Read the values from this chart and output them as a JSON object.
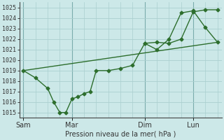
{
  "background_color": "#cce8e8",
  "grid_color": "#aacfcf",
  "line_color": "#2d6e2d",
  "marker_color": "#2d6e2d",
  "xlabel": "Pression niveau de la mer( hPa )",
  "ylim": [
    1014.5,
    1025.5
  ],
  "yticks": [
    1015,
    1016,
    1017,
    1018,
    1019,
    1020,
    1021,
    1022,
    1023,
    1024,
    1025
  ],
  "day_labels": [
    "Sam",
    "Mar",
    "Dim",
    "Lun"
  ],
  "day_positions": [
    0,
    48,
    120,
    168
  ],
  "vline_positions": [
    0,
    48,
    120,
    168
  ],
  "xlim": [
    -4,
    196
  ],
  "line1_x": [
    0,
    12,
    24,
    30,
    36,
    42,
    48,
    54,
    60,
    66,
    72,
    84,
    96,
    108,
    120,
    132,
    144,
    156,
    168,
    180,
    192
  ],
  "line1_y": [
    1019.0,
    1018.3,
    1017.3,
    1016.0,
    1015.0,
    1015.0,
    1016.3,
    1016.5,
    1016.8,
    1017.0,
    1019.0,
    1019.0,
    1019.2,
    1019.5,
    1021.6,
    1021.7,
    1021.6,
    1022.0,
    1024.6,
    1024.8,
    1024.8
  ],
  "line2_x": [
    0,
    192
  ],
  "line2_y": [
    1019.0,
    1021.7
  ],
  "line3_x": [
    120,
    132,
    144,
    156,
    168,
    180,
    192
  ],
  "line3_y": [
    1021.6,
    1021.0,
    1022.0,
    1024.5,
    1024.7,
    1023.1,
    1021.7
  ],
  "ytick_fontsize": 6,
  "xtick_fontsize": 7,
  "xlabel_fontsize": 7
}
